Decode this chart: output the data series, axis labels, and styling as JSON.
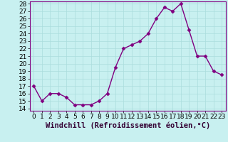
{
  "x": [
    0,
    1,
    2,
    3,
    4,
    5,
    6,
    7,
    8,
    9,
    10,
    11,
    12,
    13,
    14,
    15,
    16,
    17,
    18,
    19,
    20,
    21,
    22,
    23
  ],
  "y": [
    17,
    15,
    16,
    16,
    15.5,
    14.5,
    14.5,
    14.5,
    15,
    16,
    19.5,
    22,
    22.5,
    23,
    24,
    26,
    27.5,
    27,
    28,
    24.5,
    21,
    21,
    19,
    18.5
  ],
  "line_color": "#800080",
  "marker": "D",
  "marker_size": 2.5,
  "bg_color": "#c8f0f0",
  "grid_color": "#aadddd",
  "xlabel": "Windchill (Refroidissement éolien,°C)",
  "xlabel_fontsize": 7.5,
  "ytick_min": 14,
  "ytick_max": 28,
  "ytick_step": 1,
  "xtick_labels": [
    "0",
    "1",
    "2",
    "3",
    "4",
    "5",
    "6",
    "7",
    "8",
    "9",
    "10",
    "11",
    "12",
    "13",
    "14",
    "15",
    "16",
    "17",
    "18",
    "19",
    "20",
    "21",
    "22",
    "23"
  ],
  "tick_fontsize": 6.5,
  "spine_color": "#800080",
  "linewidth": 1.0
}
